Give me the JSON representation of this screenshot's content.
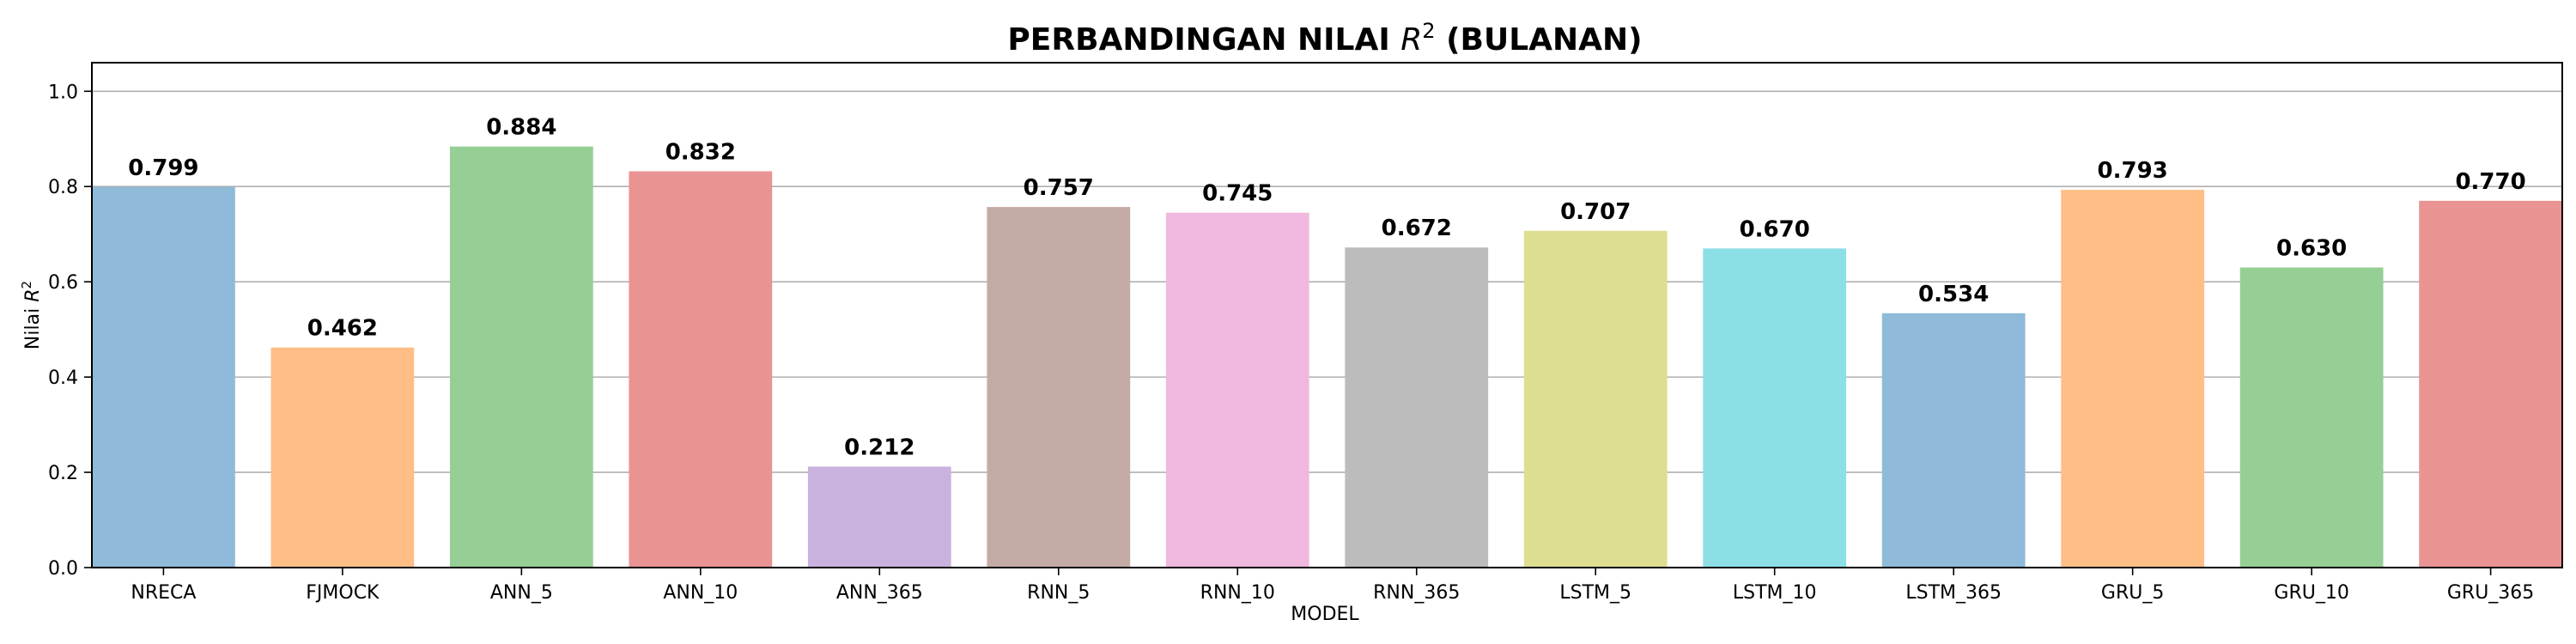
{
  "chart_data": {
    "type": "bar",
    "title_main": "PERBANDINGAN NILAI ",
    "title_var": "R",
    "title_sup": "2",
    "title_tail": " (BULANAN)",
    "xlabel": "MODEL",
    "ylabel_main": "Nilai ",
    "ylabel_var": "R",
    "ylabel_sup": "2",
    "ylim": [
      0,
      1.06
    ],
    "yticks": [
      0.0,
      0.2,
      0.4,
      0.6,
      0.8,
      1.0
    ],
    "ytick_labels": [
      "0.0",
      "0.2",
      "0.4",
      "0.6",
      "0.8",
      "1.0"
    ],
    "grid": "y",
    "categories": [
      "NRECA",
      "FJMOCK",
      "ANN_5",
      "ANN_10",
      "ANN_365",
      "RNN_5",
      "RNN_10",
      "RNN_365",
      "LSTM_5",
      "LSTM_10",
      "LSTM_365",
      "GRU_5",
      "GRU_10",
      "GRU_365"
    ],
    "values": [
      0.799,
      0.462,
      0.884,
      0.832,
      0.212,
      0.757,
      0.745,
      0.672,
      0.707,
      0.67,
      0.534,
      0.793,
      0.63,
      0.77
    ],
    "value_labels": [
      "0.799",
      "0.462",
      "0.884",
      "0.832",
      "0.212",
      "0.757",
      "0.745",
      "0.672",
      "0.707",
      "0.670",
      "0.534",
      "0.793",
      "0.630",
      "0.770"
    ],
    "colors": [
      "#8fbad9",
      "#ffbe86",
      "#95cf95",
      "#ea9393",
      "#c9b2dd",
      "#c5aba5",
      "#f1b8df",
      "#bcbcbc",
      "#dede91",
      "#8ddfe6",
      "#8fbad9",
      "#ffbe86",
      "#95cf95",
      "#ea9393"
    ]
  }
}
